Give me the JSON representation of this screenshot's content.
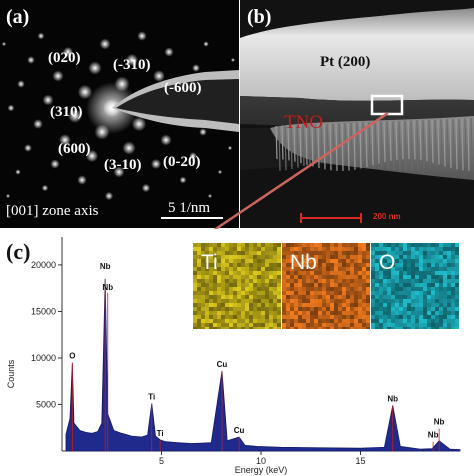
{
  "panel_a": {
    "label": "(a)",
    "indices": [
      "(020)",
      "(-310)",
      "(-600)",
      "(310)",
      "(600)",
      "(3-10)",
      "(0-20)"
    ],
    "zone_axis": "[001] zone axis",
    "scale_text": "5 1/nm"
  },
  "panel_b": {
    "label": "(b)",
    "layer_pt": "Pt (200)",
    "layer_tno": "TNO",
    "scale_text": "200 nm",
    "colors": {
      "tno_label": "#c0201c",
      "scale_bar": "#d82a22",
      "arrow": "#c9655c"
    }
  },
  "panel_c": {
    "label": "(c)",
    "maps": [
      {
        "label": "Ti",
        "color": "#b8a818"
      },
      {
        "label": "Nb",
        "color": "#c8661a"
      },
      {
        "label": "O",
        "color": "#1a9ca8"
      }
    ]
  },
  "chart_data": {
    "type": "line",
    "title": "",
    "xlabel": "Energy (keV)",
    "ylabel": "Counts",
    "xlim": [
      0,
      20
    ],
    "ylim": [
      0,
      23000
    ],
    "x_ticks": [
      5,
      10,
      15
    ],
    "y_ticks": [
      5000,
      10000,
      15000,
      20000
    ],
    "series": [
      {
        "values_note_free": true,
        "x": [
          0.2,
          0.4,
          0.52,
          0.6,
          0.9,
          1.2,
          1.5,
          1.8,
          2.0,
          2.17,
          2.3,
          2.6,
          3.0,
          3.5,
          4.0,
          4.3,
          4.51,
          4.7,
          4.93,
          5.2,
          5.8,
          6.5,
          7.0,
          7.5,
          8.04,
          8.3,
          8.9,
          9.2,
          9.8,
          11,
          13,
          15,
          16.2,
          16.62,
          17.0,
          18,
          18.6,
          18.95,
          19.5,
          20
        ],
        "y": [
          1800,
          3500,
          9500,
          3000,
          2200,
          2000,
          1900,
          2100,
          3000,
          18500,
          4000,
          2200,
          1900,
          1600,
          1500,
          1700,
          5100,
          1600,
          1200,
          1000,
          900,
          800,
          850,
          900,
          8600,
          1100,
          1500,
          600,
          500,
          400,
          350,
          300,
          400,
          4900,
          500,
          200,
          250,
          1100,
          200,
          150
        ]
      }
    ],
    "peaks": [
      {
        "label": "O",
        "x": 0.52,
        "y": 9500
      },
      {
        "label": "Nb",
        "x": 2.17,
        "y": 18500
      },
      {
        "label": "Nb",
        "x": 2.3,
        "y": 17000
      },
      {
        "label": "Ti",
        "x": 4.51,
        "y": 5100
      },
      {
        "label": "Ti",
        "x": 4.93,
        "y": 1200
      },
      {
        "label": "Cu",
        "x": 8.04,
        "y": 8600
      },
      {
        "label": "Cu",
        "x": 8.9,
        "y": 1500
      },
      {
        "label": "Nb",
        "x": 16.62,
        "y": 4900
      },
      {
        "label": "Nb",
        "x": 18.95,
        "y": 2400
      },
      {
        "label": "Nb",
        "x": 18.65,
        "y": 1000
      }
    ]
  }
}
